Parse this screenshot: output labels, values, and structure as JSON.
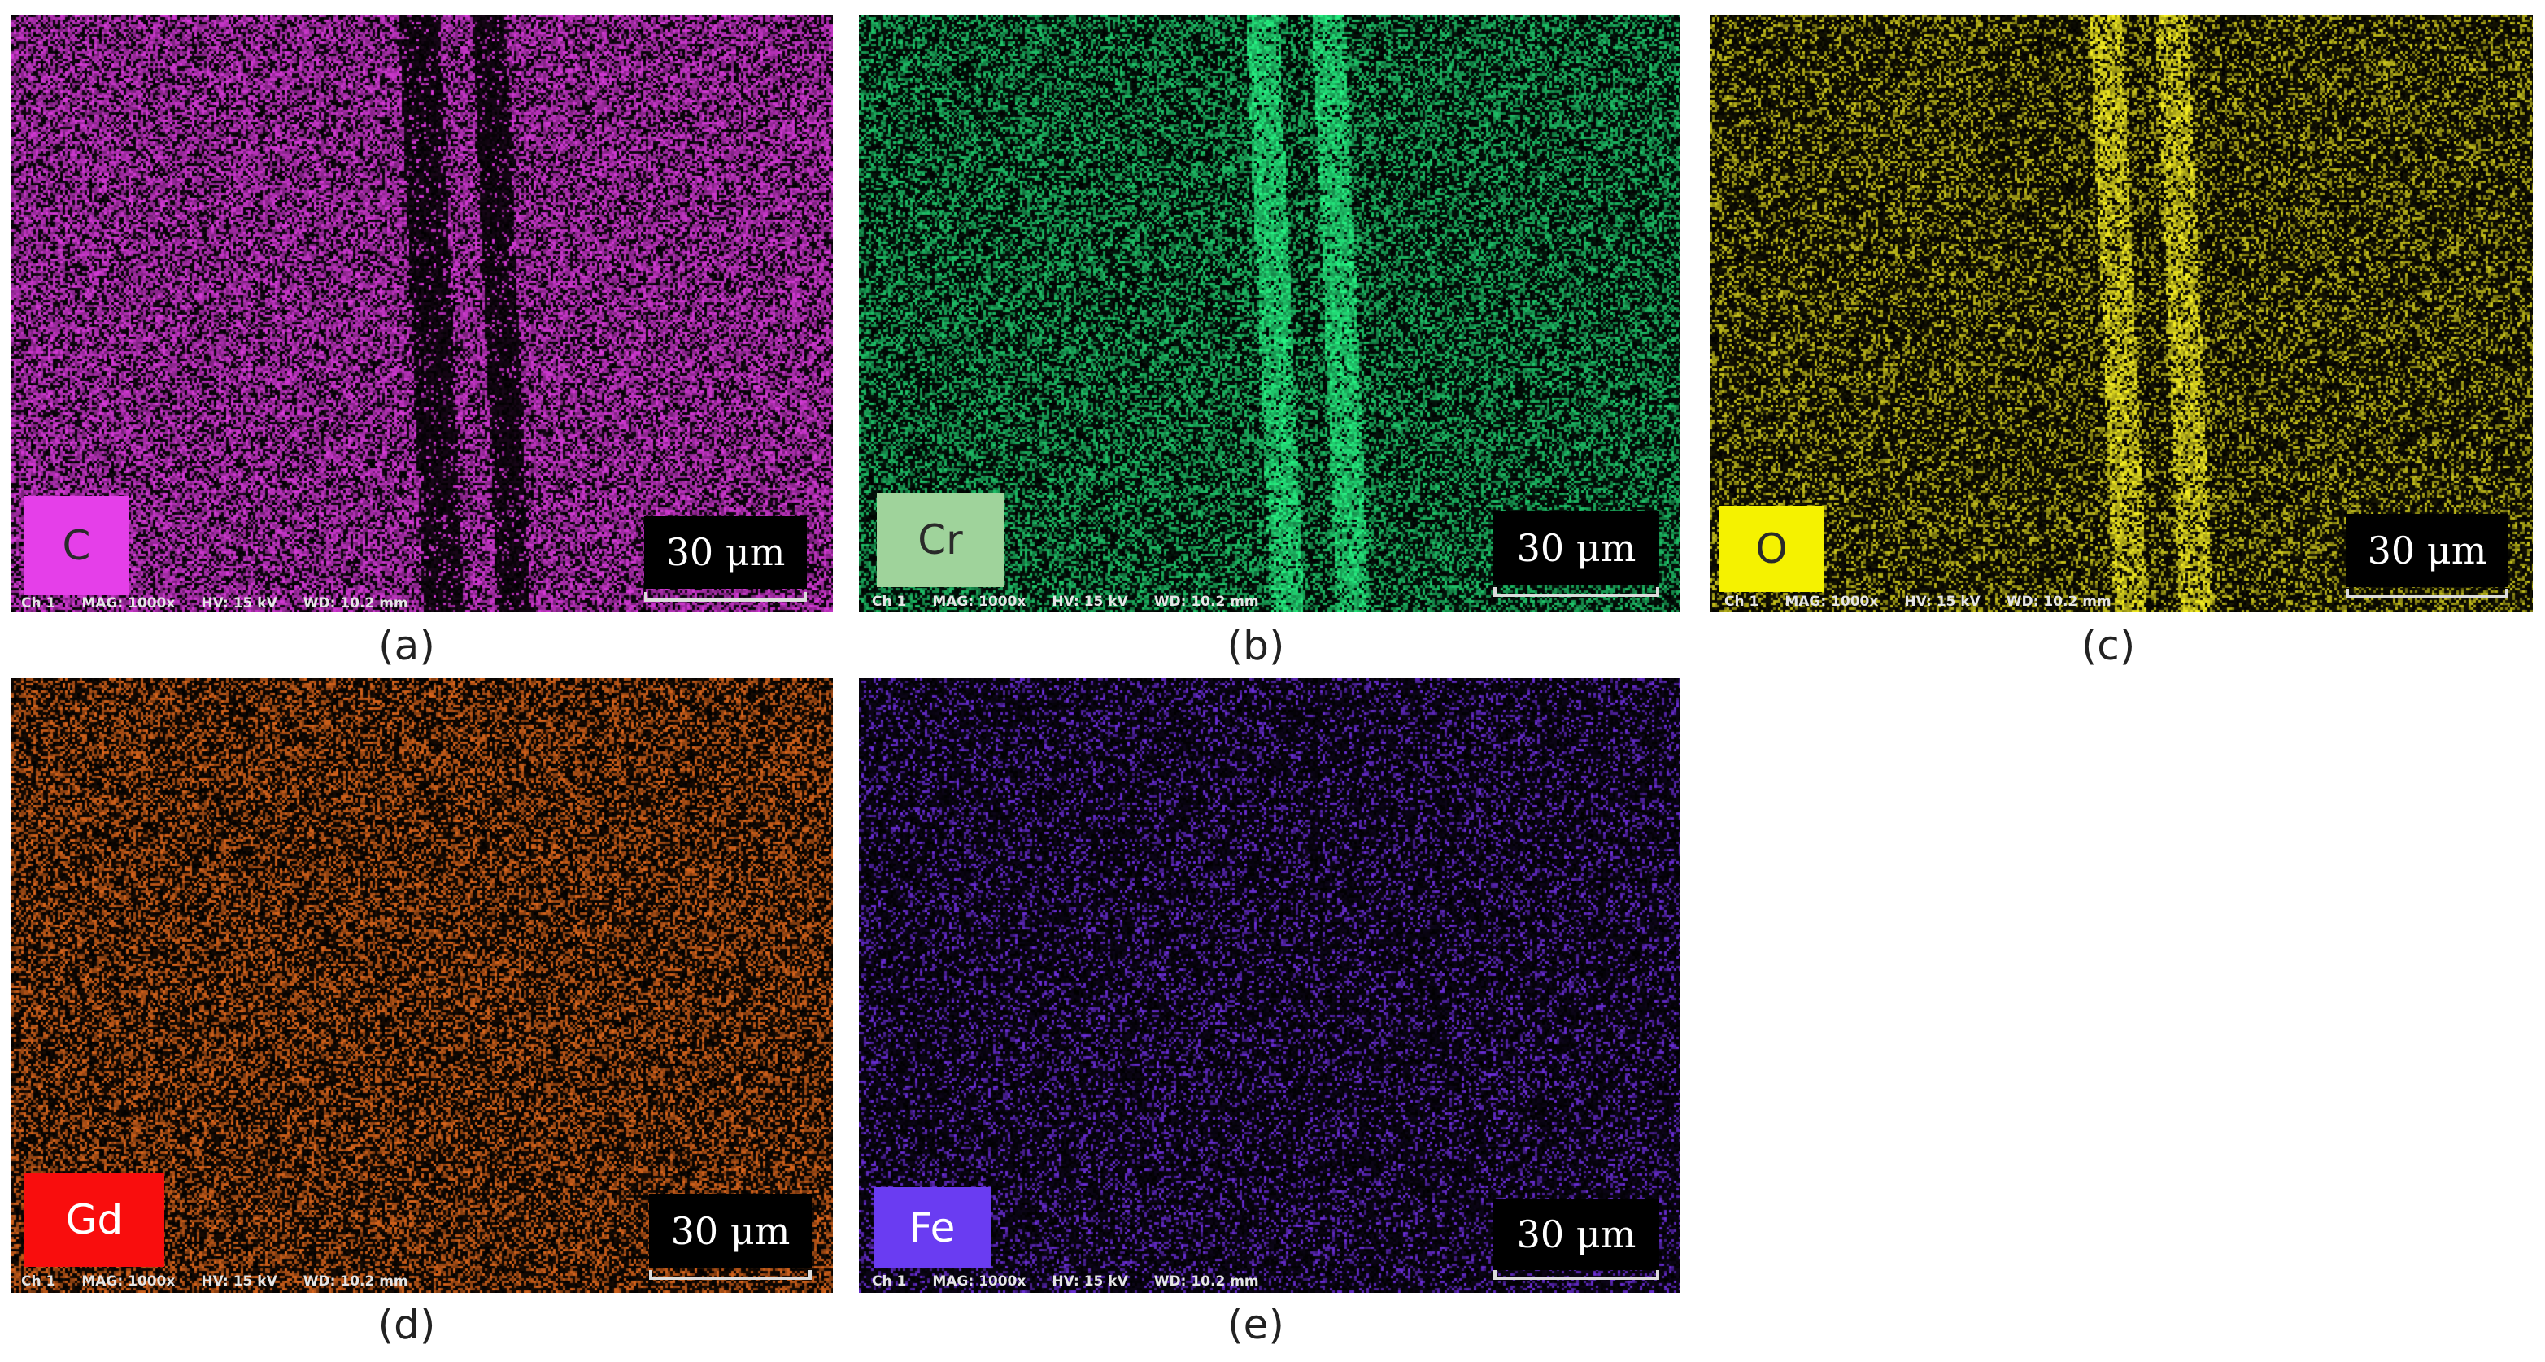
{
  "figure": {
    "panels": [
      {
        "id": "a",
        "element": "C",
        "badge_color": "#e53fe9",
        "badge_text_color": "#2a2a2a",
        "map_color": "#d63ad8",
        "density": 0.62,
        "band_type": "dark",
        "scale_label": "30  μm",
        "meta": [
          "Ch 1",
          "MAG: 1000x",
          "HV: 15 kV",
          "WD: 10.2 mm"
        ],
        "caption": "(a)"
      },
      {
        "id": "b",
        "element": "Cr",
        "badge_color": "#9fd39b",
        "badge_text_color": "#2a2a2a",
        "map_color": "#1fc46a",
        "density": 0.45,
        "band_type": "bright",
        "scale_label": "30  μm",
        "meta": [
          "Ch 1",
          "MAG: 1000x",
          "HV: 15 kV",
          "WD: 10.2 mm"
        ],
        "caption": "(b)"
      },
      {
        "id": "c",
        "element": "O",
        "badge_color": "#f5f200",
        "badge_text_color": "#2a2a2a",
        "map_color": "#c8c21c",
        "density": 0.32,
        "band_type": "bright",
        "scale_label": "30  μm",
        "meta": [
          "Ch 1",
          "MAG: 1000x",
          "HV: 15 kV",
          "WD: 10.2 mm"
        ],
        "caption": "(c)"
      },
      {
        "id": "d",
        "element": "Gd",
        "badge_color": "#f90d0d",
        "badge_text_color": "#ffffff",
        "map_color": "#d9651c",
        "density": 0.42,
        "band_type": "none",
        "scale_label": "30  μm",
        "meta": [
          "Ch 1",
          "MAG: 1000x",
          "HV: 15 kV",
          "WD: 10.2 mm"
        ],
        "caption": "(d)"
      },
      {
        "id": "e",
        "element": "Fe",
        "badge_color": "#6a3cf2",
        "badge_text_color": "#ffffff",
        "map_color": "#6a2ed6",
        "density": 0.22,
        "band_type": "none",
        "scale_label": "30  μm",
        "meta": [
          "Ch 1",
          "MAG: 1000x",
          "HV: 15 kV",
          "WD: 10.2 mm"
        ],
        "caption": "(e)"
      }
    ]
  }
}
